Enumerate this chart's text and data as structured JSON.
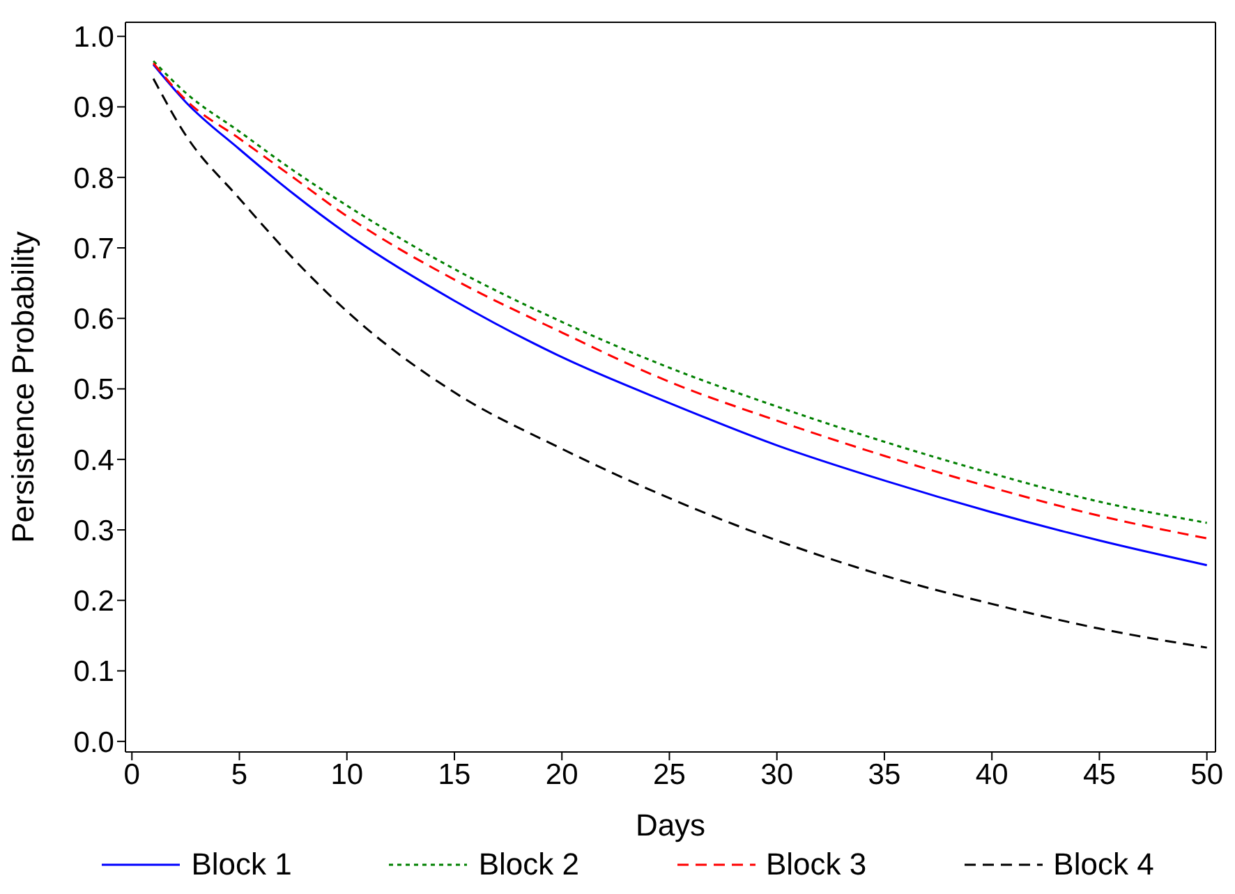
{
  "chart_data": {
    "type": "line",
    "xlabel": "Days",
    "ylabel": "Persistence Probability",
    "x": [
      1,
      2.5,
      5,
      7.5,
      10,
      15,
      20,
      25,
      30,
      35,
      40,
      45,
      50
    ],
    "series": [
      {
        "name": "Block 1",
        "color": "#0000ff",
        "line_style": "solid",
        "values": [
          0.96,
          0.907,
          0.84,
          0.777,
          0.72,
          0.625,
          0.545,
          0.48,
          0.42,
          0.37,
          0.325,
          0.285,
          0.25
        ]
      },
      {
        "name": "Block 2",
        "color": "#008000",
        "line_style": "dotted",
        "values": [
          0.965,
          0.92,
          0.865,
          0.81,
          0.76,
          0.67,
          0.595,
          0.53,
          0.475,
          0.425,
          0.38,
          0.34,
          0.31
        ]
      },
      {
        "name": "Block 3",
        "color": "#ff0000",
        "line_style": "dashed",
        "values": [
          0.962,
          0.91,
          0.855,
          0.8,
          0.745,
          0.655,
          0.58,
          0.51,
          0.455,
          0.405,
          0.36,
          0.32,
          0.288
        ]
      },
      {
        "name": "Block 4",
        "color": "#000000",
        "line_style": "dashed",
        "values": [
          0.94,
          0.86,
          0.77,
          0.685,
          0.61,
          0.495,
          0.415,
          0.345,
          0.285,
          0.235,
          0.195,
          0.16,
          0.133
        ]
      }
    ],
    "xlim": [
      -0.3,
      50.4
    ],
    "xticks": [
      0,
      5,
      10,
      15,
      20,
      25,
      30,
      35,
      40,
      45,
      50
    ],
    "ylim": [
      -0.015,
      1.02
    ],
    "yticks": [
      {
        "value": 0,
        "label": "0.0"
      },
      0.1,
      0.2,
      0.3,
      0.4,
      0.5,
      0.6,
      0.7,
      0.8,
      0.9,
      {
        "value": 1,
        "label": "1.0"
      }
    ],
    "grid": false,
    "legend": "bottom",
    "marker": "none"
  }
}
